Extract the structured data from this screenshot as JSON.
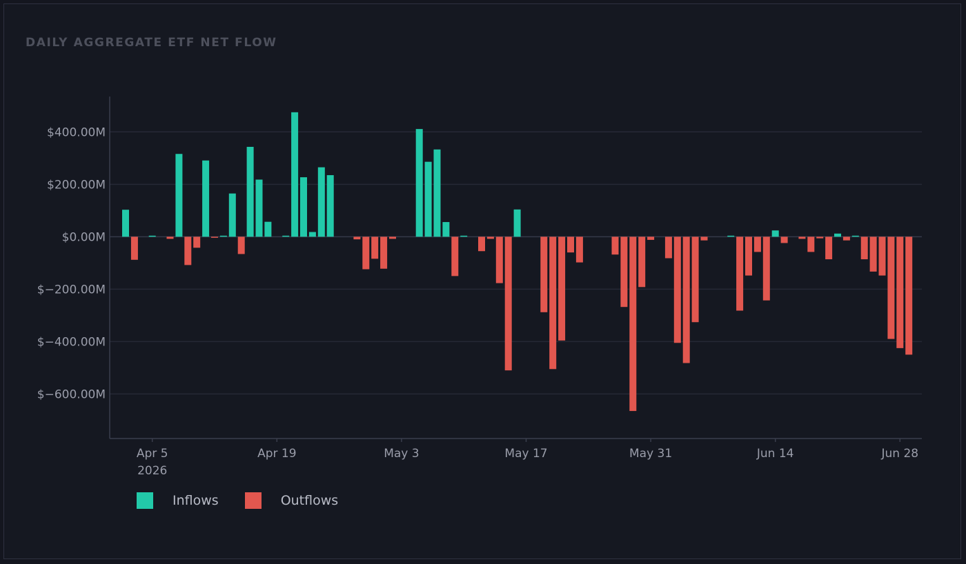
{
  "chart_data": {
    "type": "bar",
    "title": "DAILY AGGREGATE ETF NET FLOW",
    "xlabel": "",
    "ylabel": "",
    "unit": "USD millions",
    "ylim": [
      -770,
      535
    ],
    "yticks": [
      400,
      200,
      0,
      -200,
      -400,
      -600
    ],
    "ytick_labels": [
      "$400.00M",
      "$200.00M",
      "$0.00M",
      "$−200.00M",
      "$−400.00M",
      "$−600.00M"
    ],
    "xticks": [
      {
        "date": "2026-04-05",
        "label": "Apr 5",
        "sublabel": "2026"
      },
      {
        "date": "2026-04-19",
        "label": "Apr 19",
        "sublabel": ""
      },
      {
        "date": "2026-05-03",
        "label": "May 3",
        "sublabel": ""
      },
      {
        "date": "2026-05-17",
        "label": "May 17",
        "sublabel": ""
      },
      {
        "date": "2026-05-31",
        "label": "May 31",
        "sublabel": ""
      },
      {
        "date": "2026-06-14",
        "label": "Jun 14",
        "sublabel": ""
      },
      {
        "date": "2026-06-28",
        "label": "Jun 28",
        "sublabel": ""
      }
    ],
    "x_start": "2026-04-02",
    "x_end": "2026-06-29",
    "grid": true,
    "legend_position": "bottom-left",
    "series": [
      {
        "name": "Inflows",
        "color": "#22c9a9",
        "polarity": "positive"
      },
      {
        "name": "Outflows",
        "color": "#e2574f",
        "polarity": "negative"
      }
    ],
    "points": [
      {
        "date": "2026-04-02",
        "value": 103
      },
      {
        "date": "2026-04-03",
        "value": -88
      },
      {
        "date": "2026-04-05",
        "value": 4
      },
      {
        "date": "2026-04-07",
        "value": -8
      },
      {
        "date": "2026-04-08",
        "value": 316
      },
      {
        "date": "2026-04-09",
        "value": -108
      },
      {
        "date": "2026-04-10",
        "value": -42
      },
      {
        "date": "2026-04-11",
        "value": 291
      },
      {
        "date": "2026-04-12",
        "value": -4
      },
      {
        "date": "2026-04-13",
        "value": 4
      },
      {
        "date": "2026-04-14",
        "value": 165
      },
      {
        "date": "2026-04-15",
        "value": -66
      },
      {
        "date": "2026-04-16",
        "value": 343
      },
      {
        "date": "2026-04-17",
        "value": 218
      },
      {
        "date": "2026-04-18",
        "value": 57
      },
      {
        "date": "2026-04-20",
        "value": 4
      },
      {
        "date": "2026-04-21",
        "value": 475
      },
      {
        "date": "2026-04-22",
        "value": 227
      },
      {
        "date": "2026-04-23",
        "value": 18
      },
      {
        "date": "2026-04-24",
        "value": 265
      },
      {
        "date": "2026-04-25",
        "value": 235
      },
      {
        "date": "2026-04-28",
        "value": -10
      },
      {
        "date": "2026-04-29",
        "value": -124
      },
      {
        "date": "2026-04-30",
        "value": -84
      },
      {
        "date": "2026-05-01",
        "value": -122
      },
      {
        "date": "2026-05-02",
        "value": -8
      },
      {
        "date": "2026-05-05",
        "value": 411
      },
      {
        "date": "2026-05-06",
        "value": 286
      },
      {
        "date": "2026-05-07",
        "value": 333
      },
      {
        "date": "2026-05-08",
        "value": 56
      },
      {
        "date": "2026-05-09",
        "value": -150
      },
      {
        "date": "2026-05-10",
        "value": 4
      },
      {
        "date": "2026-05-12",
        "value": -55
      },
      {
        "date": "2026-05-13",
        "value": -8
      },
      {
        "date": "2026-05-14",
        "value": -177
      },
      {
        "date": "2026-05-15",
        "value": -510
      },
      {
        "date": "2026-05-16",
        "value": 104
      },
      {
        "date": "2026-05-19",
        "value": -288
      },
      {
        "date": "2026-05-20",
        "value": -505
      },
      {
        "date": "2026-05-21",
        "value": -396
      },
      {
        "date": "2026-05-22",
        "value": -60
      },
      {
        "date": "2026-05-23",
        "value": -98
      },
      {
        "date": "2026-05-27",
        "value": -68
      },
      {
        "date": "2026-05-28",
        "value": -268
      },
      {
        "date": "2026-05-29",
        "value": -665
      },
      {
        "date": "2026-05-30",
        "value": -192
      },
      {
        "date": "2026-05-31",
        "value": -12
      },
      {
        "date": "2026-06-02",
        "value": -82
      },
      {
        "date": "2026-06-03",
        "value": -405
      },
      {
        "date": "2026-06-04",
        "value": -482
      },
      {
        "date": "2026-06-05",
        "value": -326
      },
      {
        "date": "2026-06-06",
        "value": -14
      },
      {
        "date": "2026-06-09",
        "value": 4
      },
      {
        "date": "2026-06-10",
        "value": -282
      },
      {
        "date": "2026-06-11",
        "value": -148
      },
      {
        "date": "2026-06-12",
        "value": -58
      },
      {
        "date": "2026-06-13",
        "value": -243
      },
      {
        "date": "2026-06-14",
        "value": 24
      },
      {
        "date": "2026-06-15",
        "value": -24
      },
      {
        "date": "2026-06-17",
        "value": -8
      },
      {
        "date": "2026-06-18",
        "value": -58
      },
      {
        "date": "2026-06-19",
        "value": -6
      },
      {
        "date": "2026-06-20",
        "value": -86
      },
      {
        "date": "2026-06-21",
        "value": 12
      },
      {
        "date": "2026-06-22",
        "value": -14
      },
      {
        "date": "2026-06-23",
        "value": 4
      },
      {
        "date": "2026-06-24",
        "value": -86
      },
      {
        "date": "2026-06-25",
        "value": -133
      },
      {
        "date": "2026-06-26",
        "value": -148
      },
      {
        "date": "2026-06-27",
        "value": -390
      },
      {
        "date": "2026-06-28",
        "value": -425
      },
      {
        "date": "2026-06-29",
        "value": -450
      }
    ]
  },
  "legend": {
    "inflows_label": "Inflows",
    "outflows_label": "Outflows"
  }
}
